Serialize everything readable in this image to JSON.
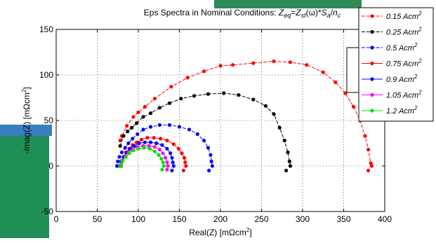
{
  "chart_data": {
    "type": "line",
    "title": "Eps Spectra in Nominal Conditions: Z_eq=Z_st(ω)*S_a/n_c",
    "xlabel": "Real(Z) [mΩcm²]",
    "ylabel": "-Imag(Z) [mΩcm²]",
    "xlim": [
      0,
      400
    ],
    "ylim": [
      -50,
      150
    ],
    "xticks": [
      0,
      50,
      100,
      150,
      200,
      250,
      300,
      350,
      400
    ],
    "yticks": [
      -50,
      0,
      50,
      100,
      150
    ],
    "grid": "dotted",
    "legend_position": "top-right",
    "series": [
      {
        "name": "0.15 Acm²",
        "color": "#ff0000",
        "style": "dashed",
        "points": [
          [
            384,
            0
          ],
          [
            383,
            3
          ],
          [
            380,
            18
          ],
          [
            376,
            33
          ],
          [
            370,
            50
          ],
          [
            362,
            65
          ],
          [
            352,
            80
          ],
          [
            340,
            92
          ],
          [
            325,
            103
          ],
          [
            305,
            111
          ],
          [
            285,
            114
          ],
          [
            265,
            115
          ],
          [
            240,
            113
          ],
          [
            215,
            111
          ],
          [
            200,
            110
          ],
          [
            180,
            104
          ],
          [
            160,
            97
          ],
          [
            140,
            87
          ],
          [
            120,
            74
          ],
          [
            108,
            65
          ],
          [
            100,
            59
          ],
          [
            94,
            54
          ],
          [
            86,
            44
          ],
          [
            80,
            33
          ],
          [
            78,
            28
          ],
          [
            380,
            -5
          ]
        ]
      },
      {
        "name": "0.25 Acm²",
        "color": "#000000",
        "style": "dashed",
        "points": [
          [
            285,
            0
          ],
          [
            284,
            5
          ],
          [
            282,
            15
          ],
          [
            278,
            28
          ],
          [
            272,
            42
          ],
          [
            265,
            57
          ],
          [
            255,
            66
          ],
          [
            240,
            73
          ],
          [
            222,
            78
          ],
          [
            204,
            80
          ],
          [
            185,
            79
          ],
          [
            168,
            77
          ],
          [
            152,
            74
          ],
          [
            138,
            69
          ],
          [
            126,
            64
          ],
          [
            115,
            58
          ],
          [
            106,
            54
          ],
          [
            98,
            47
          ],
          [
            92,
            42
          ],
          [
            87,
            38
          ],
          [
            82,
            33
          ],
          [
            78,
            22
          ],
          [
            280,
            -5
          ]
        ]
      },
      {
        "name": "0.5 Acm²",
        "color": "#0000ff",
        "style": "dashed",
        "points": [
          [
            190,
            0
          ],
          [
            189,
            5
          ],
          [
            188,
            12
          ],
          [
            185,
            20
          ],
          [
            180,
            28
          ],
          [
            172,
            35
          ],
          [
            162,
            40
          ],
          [
            150,
            43
          ],
          [
            138,
            45
          ],
          [
            126,
            45
          ],
          [
            115,
            43
          ],
          [
            106,
            40
          ],
          [
            99,
            35
          ],
          [
            93,
            30
          ],
          [
            88,
            25
          ],
          [
            84,
            20
          ],
          [
            80,
            15
          ],
          [
            77,
            10
          ],
          [
            75,
            5
          ],
          [
            74,
            0
          ],
          [
            186,
            -5
          ]
        ]
      },
      {
        "name": "0.75 Acm²",
        "color": "#ff0000",
        "style": "solid",
        "points": [
          [
            158,
            0
          ],
          [
            157,
            4
          ],
          [
            156,
            9
          ],
          [
            153,
            14
          ],
          [
            149,
            19
          ],
          [
            143,
            24
          ],
          [
            135,
            28
          ],
          [
            127,
            30
          ],
          [
            119,
            31
          ],
          [
            111,
            31
          ],
          [
            104,
            29
          ],
          [
            98,
            26
          ],
          [
            93,
            23
          ],
          [
            89,
            19
          ],
          [
            85,
            15
          ],
          [
            82,
            10
          ],
          [
            80,
            5
          ],
          [
            79,
            0
          ],
          [
            155,
            -5
          ]
        ]
      },
      {
        "name": "0.9 Acm²",
        "color": "#0000ff",
        "style": "solid",
        "points": [
          [
            143,
            0
          ],
          [
            142,
            4
          ],
          [
            141,
            9
          ],
          [
            139,
            14
          ],
          [
            135,
            19
          ],
          [
            129,
            23
          ],
          [
            122,
            25
          ],
          [
            115,
            26
          ],
          [
            108,
            26
          ],
          [
            101,
            25
          ],
          [
            95,
            22
          ],
          [
            90,
            19
          ],
          [
            86,
            15
          ],
          [
            82,
            10
          ],
          [
            79,
            5
          ],
          [
            77,
            0
          ],
          [
            141,
            -5
          ]
        ]
      },
      {
        "name": "1.05 Acm²",
        "color": "#ff00ff",
        "style": "solid",
        "points": [
          [
            136,
            0
          ],
          [
            135,
            4
          ],
          [
            133,
            9
          ],
          [
            130,
            14
          ],
          [
            126,
            18
          ],
          [
            120,
            21
          ],
          [
            113,
            22
          ],
          [
            106,
            22
          ],
          [
            99,
            21
          ],
          [
            93,
            18
          ],
          [
            88,
            15
          ],
          [
            84,
            11
          ],
          [
            80,
            6
          ],
          [
            78,
            0
          ],
          [
            135,
            -4
          ]
        ]
      },
      {
        "name": "1.2 Acm²",
        "color": "#00dd00",
        "style": "solid",
        "points": [
          [
            131,
            0
          ],
          [
            130,
            4
          ],
          [
            128,
            8
          ],
          [
            125,
            12
          ],
          [
            120,
            16
          ],
          [
            114,
            19
          ],
          [
            107,
            20
          ],
          [
            100,
            19
          ],
          [
            94,
            17
          ],
          [
            89,
            14
          ],
          [
            85,
            10
          ],
          [
            81,
            6
          ],
          [
            79,
            2
          ],
          [
            78,
            0
          ],
          [
            129,
            -4
          ]
        ]
      }
    ]
  }
}
